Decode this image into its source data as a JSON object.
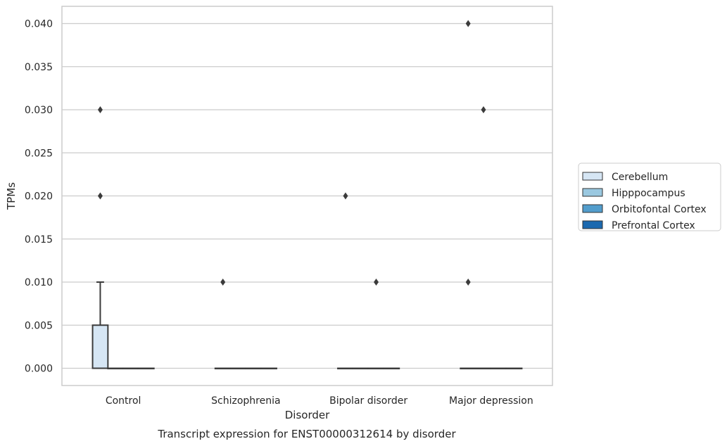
{
  "chart_data": {
    "type": "box",
    "caption": "Transcript expression for ENST00000312614 by disorder",
    "xlabel": "Disorder",
    "ylabel": "TPMs",
    "categories": [
      "Control",
      "Schizophrenia",
      "Bipolar disorder",
      "Major depression"
    ],
    "ylim": [
      -0.002,
      0.042
    ],
    "yticks": [
      "0.000",
      "0.005",
      "0.010",
      "0.015",
      "0.020",
      "0.025",
      "0.030",
      "0.035",
      "0.040"
    ],
    "grid": true,
    "legend_position": "outside-right",
    "series": [
      {
        "name": "Cerebellum",
        "color": "#d6e6f4",
        "boxes": [
          {
            "category": "Control",
            "q1": 0.0,
            "median": 0.0,
            "q3": 0.005,
            "whisker_low": 0.0,
            "whisker_high": 0.01,
            "outliers": [
              0.02,
              0.03
            ]
          },
          {
            "category": "Schizophrenia",
            "q1": 0.0,
            "median": 0.0,
            "q3": 0.0,
            "whisker_low": 0.0,
            "whisker_high": 0.0,
            "outliers": [
              0.01
            ]
          },
          {
            "category": "Bipolar disorder",
            "q1": 0.0,
            "median": 0.0,
            "q3": 0.0,
            "whisker_low": 0.0,
            "whisker_high": 0.0,
            "outliers": [
              0.02
            ]
          },
          {
            "category": "Major depression",
            "q1": 0.0,
            "median": 0.0,
            "q3": 0.0,
            "whisker_low": 0.0,
            "whisker_high": 0.0,
            "outliers": [
              0.01,
              0.04
            ]
          }
        ]
      },
      {
        "name": "Hipppocampus",
        "color": "#9ac8e0",
        "boxes": [
          {
            "category": "Control",
            "q1": 0.0,
            "median": 0.0,
            "q3": 0.0,
            "whisker_low": 0.0,
            "whisker_high": 0.0,
            "outliers": []
          },
          {
            "category": "Schizophrenia",
            "q1": 0.0,
            "median": 0.0,
            "q3": 0.0,
            "whisker_low": 0.0,
            "whisker_high": 0.0,
            "outliers": []
          },
          {
            "category": "Bipolar disorder",
            "q1": 0.0,
            "median": 0.0,
            "q3": 0.0,
            "whisker_low": 0.0,
            "whisker_high": 0.0,
            "outliers": []
          },
          {
            "category": "Major depression",
            "q1": 0.0,
            "median": 0.0,
            "q3": 0.0,
            "whisker_low": 0.0,
            "whisker_high": 0.0,
            "outliers": [
              0.03
            ]
          }
        ]
      },
      {
        "name": "Orbitofontal Cortex",
        "color": "#529dcc",
        "boxes": [
          {
            "category": "Control",
            "q1": 0.0,
            "median": 0.0,
            "q3": 0.0,
            "whisker_low": 0.0,
            "whisker_high": 0.0,
            "outliers": []
          },
          {
            "category": "Schizophrenia",
            "q1": 0.0,
            "median": 0.0,
            "q3": 0.0,
            "whisker_low": 0.0,
            "whisker_high": 0.0,
            "outliers": []
          },
          {
            "category": "Bipolar disorder",
            "q1": 0.0,
            "median": 0.0,
            "q3": 0.0,
            "whisker_low": 0.0,
            "whisker_high": 0.0,
            "outliers": [
              0.01
            ]
          },
          {
            "category": "Major depression",
            "q1": 0.0,
            "median": 0.0,
            "q3": 0.0,
            "whisker_low": 0.0,
            "whisker_high": 0.0,
            "outliers": []
          }
        ]
      },
      {
        "name": "Prefrontal Cortex",
        "color": "#1b69af",
        "boxes": [
          {
            "category": "Control",
            "q1": 0.0,
            "median": 0.0,
            "q3": 0.0,
            "whisker_low": 0.0,
            "whisker_high": 0.0,
            "outliers": []
          },
          {
            "category": "Schizophrenia",
            "q1": 0.0,
            "median": 0.0,
            "q3": 0.0,
            "whisker_low": 0.0,
            "whisker_high": 0.0,
            "outliers": []
          },
          {
            "category": "Bipolar disorder",
            "q1": 0.0,
            "median": 0.0,
            "q3": 0.0,
            "whisker_low": 0.0,
            "whisker_high": 0.0,
            "outliers": []
          },
          {
            "category": "Major depression",
            "q1": 0.0,
            "median": 0.0,
            "q3": 0.0,
            "whisker_low": 0.0,
            "whisker_high": 0.0,
            "outliers": []
          }
        ]
      }
    ]
  }
}
